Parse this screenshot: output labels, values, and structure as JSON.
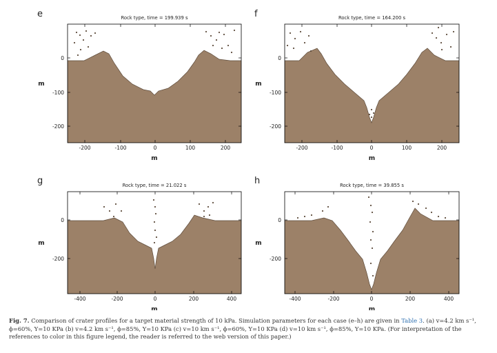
{
  "colors": {
    "rock": "#9c8168",
    "rock_edge": "#5e4c3c",
    "axis": "#000000"
  },
  "panels": [
    {
      "id": "e",
      "letter": "e",
      "title": "Rock type, time =  199.939 s",
      "xticks": [
        "-200",
        "-100",
        "0",
        "100",
        "200"
      ],
      "yticks": [
        "0",
        "-100",
        "-200"
      ],
      "xlabel": "m",
      "ylabel": "m"
    },
    {
      "id": "f",
      "letter": "f",
      "title": "Rock type, time =  164.200 s",
      "xticks": [
        "-200",
        "-100",
        "0",
        "100",
        "200"
      ],
      "yticks": [
        "0",
        "-100",
        "-200"
      ],
      "xlabel": "m",
      "ylabel": "m"
    },
    {
      "id": "g",
      "letter": "g",
      "title": "Rock type, time =   21.022 s",
      "xticks": [
        "-400",
        "-200",
        "0",
        "200",
        "400"
      ],
      "yticks": [
        "0",
        "-200"
      ],
      "xlabel": "m",
      "ylabel": "m"
    },
    {
      "id": "h",
      "letter": "h",
      "title": "Rock type, time =   39.855 s",
      "xticks": [
        "-400",
        "-200",
        "0",
        "200",
        "400"
      ],
      "yticks": [
        "0",
        "-200"
      ],
      "xlabel": "m",
      "ylabel": "m"
    }
  ],
  "caption": {
    "label": "Fig. 7.",
    "text_before_link": " Comparison of crater profiles for a target material strength of 10 kPa. Simulation parameters for each case (e–h) are given in ",
    "link_text": "Table 3",
    "text_after_link": ". (a) v=4.2 km s⁻¹, ϕ=60%, Y=10 KPa (b) v=4.2 km s⁻¹, ϕ=85%, Y=10 KPa (c) v=10 km s⁻¹, ϕ=60%, Y=10 KPa (d) v=10 km s⁻¹, ϕ=85%, Y=10 KPa. (For interpretation of the references to color in this figure legend, the reader is referred to the web version of this paper.)"
  }
}
